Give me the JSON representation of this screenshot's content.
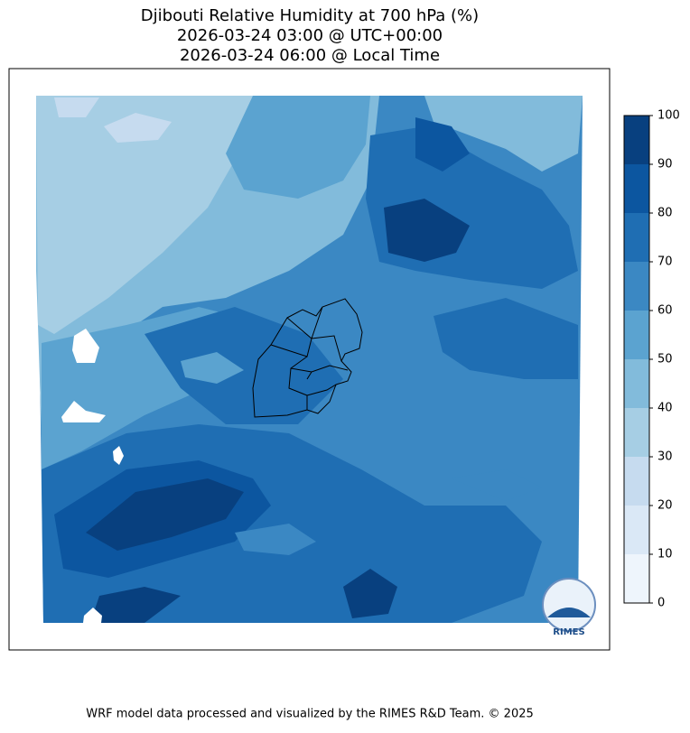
{
  "title": [
    "Djibouti Relative Humidity at 700 hPa (%)",
    "2026-03-24 03:00 @ UTC+00:00",
    "2026-03-24 06:00 @ Local Time"
  ],
  "colorbar": {
    "ticks": [
      0,
      10,
      20,
      30,
      40,
      50,
      60,
      70,
      80,
      90,
      100
    ],
    "colors": [
      "#eef5fc",
      "#dae8f6",
      "#c6dbef",
      "#a6cee4",
      "#82bbdb",
      "#5ba3d0",
      "#3b88c3",
      "#1f6eb3",
      "#0c56a0",
      "#08407f"
    ]
  },
  "logo": "RIMES",
  "footer": "WRF model data processed and visualized by the RIMES R&D Team. © 2025"
}
